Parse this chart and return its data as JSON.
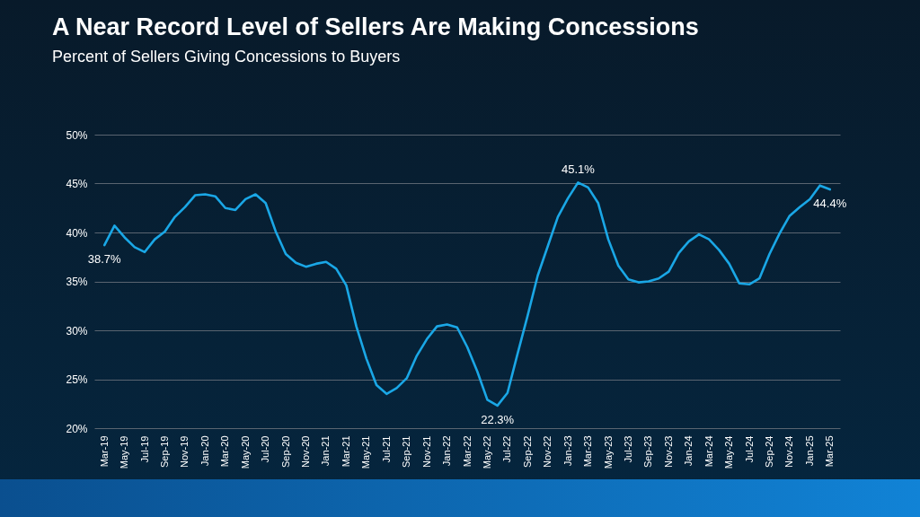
{
  "chart_data": {
    "type": "line",
    "title": "A Near Record Level of Sellers Are Making Concessions",
    "subtitle": "Percent of Sellers Giving Concessions to Buyers",
    "categories": [
      "Mar-19",
      null,
      "May-19",
      null,
      "Jul-19",
      null,
      "Sep-19",
      null,
      "Nov-19",
      null,
      "Jan-20",
      null,
      "Mar-20",
      null,
      "May-20",
      null,
      "Jul-20",
      null,
      "Sep-20",
      null,
      "Nov-20",
      null,
      "Jan-21",
      null,
      "Mar-21",
      null,
      "May-21",
      null,
      "Jul-21",
      null,
      "Sep-21",
      null,
      "Nov-21",
      null,
      "Jan-22",
      null,
      "Mar-22",
      null,
      "May-22",
      null,
      "Jul-22",
      null,
      "Sep-22",
      null,
      "Nov-22",
      null,
      "Jan-23",
      null,
      "Mar-23",
      null,
      "May-23",
      null,
      "Jul-23",
      null,
      "Sep-23",
      null,
      "Nov-23",
      null,
      "Jan-24",
      null,
      "Mar-24",
      null,
      "May-24",
      null,
      "Jul-24",
      null,
      "Sep-24",
      null,
      "Nov-24",
      null,
      "Jan-25",
      null,
      "Mar-25"
    ],
    "series": [
      {
        "color": "#1aa7e6",
        "values": [
          38.7,
          40.7,
          39.5,
          38.5,
          38.0,
          39.3,
          40.1,
          41.6,
          42.6,
          43.8,
          43.9,
          43.7,
          42.5,
          42.3,
          43.4,
          43.9,
          43.0,
          40.1,
          37.8,
          36.9,
          36.5,
          36.8,
          37.0,
          36.3,
          34.6,
          30.4,
          27.1,
          24.4,
          23.5,
          24.1,
          25.1,
          27.4,
          29.1,
          30.4,
          30.6,
          30.3,
          28.3,
          25.8,
          22.9,
          22.3,
          23.6,
          27.6,
          31.5,
          35.6,
          38.6,
          41.6,
          43.5,
          45.1,
          44.6,
          43.0,
          39.3,
          36.6,
          35.2,
          34.9,
          35.0,
          35.3,
          36.0,
          37.9,
          39.1,
          39.8,
          39.3,
          38.2,
          36.8,
          34.8,
          34.7,
          35.3,
          37.8,
          39.9,
          41.7,
          42.6,
          43.4,
          44.8,
          44.4
        ],
        "value_labels": [
          "38.7%",
          null,
          null,
          null,
          null,
          null,
          null,
          null,
          null,
          null,
          null,
          null,
          null,
          null,
          null,
          null,
          null,
          null,
          null,
          null,
          null,
          null,
          null,
          null,
          null,
          null,
          null,
          null,
          null,
          null,
          null,
          null,
          null,
          null,
          null,
          null,
          null,
          null,
          null,
          "22.3%",
          null,
          null,
          null,
          null,
          null,
          null,
          null,
          "45.1%",
          null,
          null,
          null,
          null,
          null,
          null,
          null,
          null,
          null,
          null,
          null,
          null,
          null,
          null,
          null,
          null,
          null,
          null,
          null,
          null,
          null,
          null,
          null,
          null,
          "44.4%"
        ]
      }
    ],
    "ylim": [
      20,
      50
    ],
    "yticks": [
      {
        "value": 20,
        "label": "20%"
      },
      {
        "value": 25,
        "label": "25%"
      },
      {
        "value": 30,
        "label": "30%"
      },
      {
        "value": 35,
        "label": "35%"
      },
      {
        "value": 40,
        "label": "40%"
      },
      {
        "value": 45,
        "label": "45%"
      },
      {
        "value": 50,
        "label": "50%"
      }
    ],
    "grid": "y",
    "marker": "none",
    "line_style": "solid"
  }
}
